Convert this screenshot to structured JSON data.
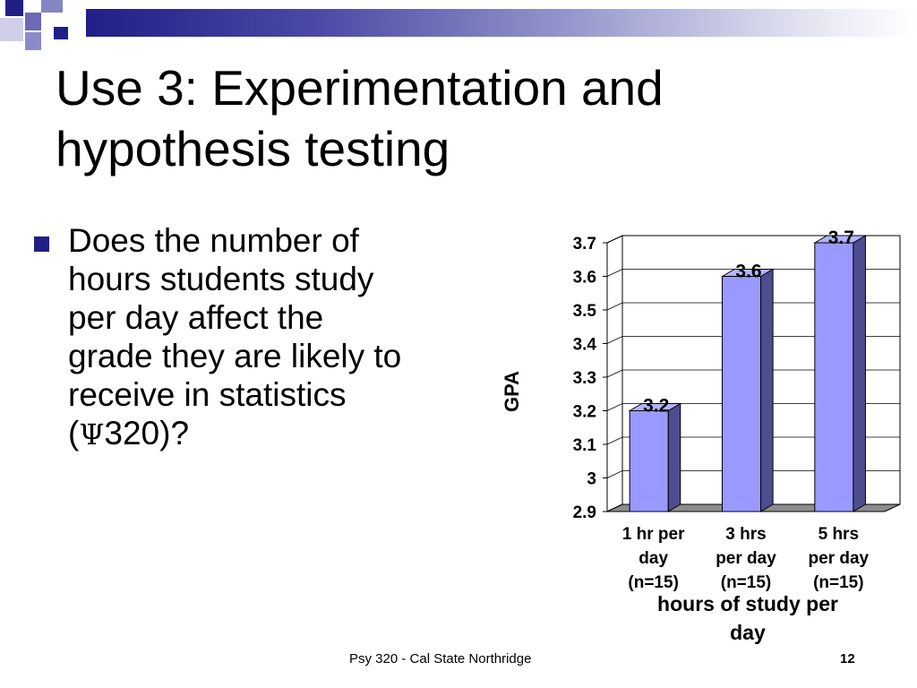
{
  "slide": {
    "title_line1": "Use 3: Experimentation and",
    "title_line2": "hypothesis testing",
    "bullet_line1": "Does the number of",
    "bullet_line2": "hours students study",
    "bullet_line3": "per day affect the",
    "bullet_line4": "grade they are likely to",
    "bullet_line5": "receive in statistics",
    "bullet_line6_symbol": "Ψ",
    "bullet_line6_rest": "320)?",
    "bullet_line6_open": "(",
    "footer": "Psy 320 - Cal State Northridge",
    "page_number": "12"
  },
  "colors": {
    "bar_front": "#9999ff",
    "bar_side": "#4d4d8f",
    "bar_top": "#b3b3ff",
    "accent": "#1f1f86"
  },
  "chart_data": {
    "type": "bar",
    "categories": [
      [
        "1 hr per",
        "day",
        "(n=15)"
      ],
      [
        "3 hrs",
        "per day",
        "(n=15)"
      ],
      [
        "5 hrs",
        "per day",
        "(n=15)"
      ]
    ],
    "values": [
      3.2,
      3.6,
      3.7
    ],
    "data_labels": [
      "3.2",
      "3.6",
      "3.7"
    ],
    "ylabel": "GPA",
    "xlabel_line1": "hours of study per",
    "xlabel_line2": "day",
    "ylim": [
      2.9,
      3.7
    ],
    "yticks": [
      "2.9",
      "3",
      "3.1",
      "3.2",
      "3.3",
      "3.4",
      "3.5",
      "3.6",
      "3.7"
    ],
    "grid": true,
    "style": "3d"
  }
}
